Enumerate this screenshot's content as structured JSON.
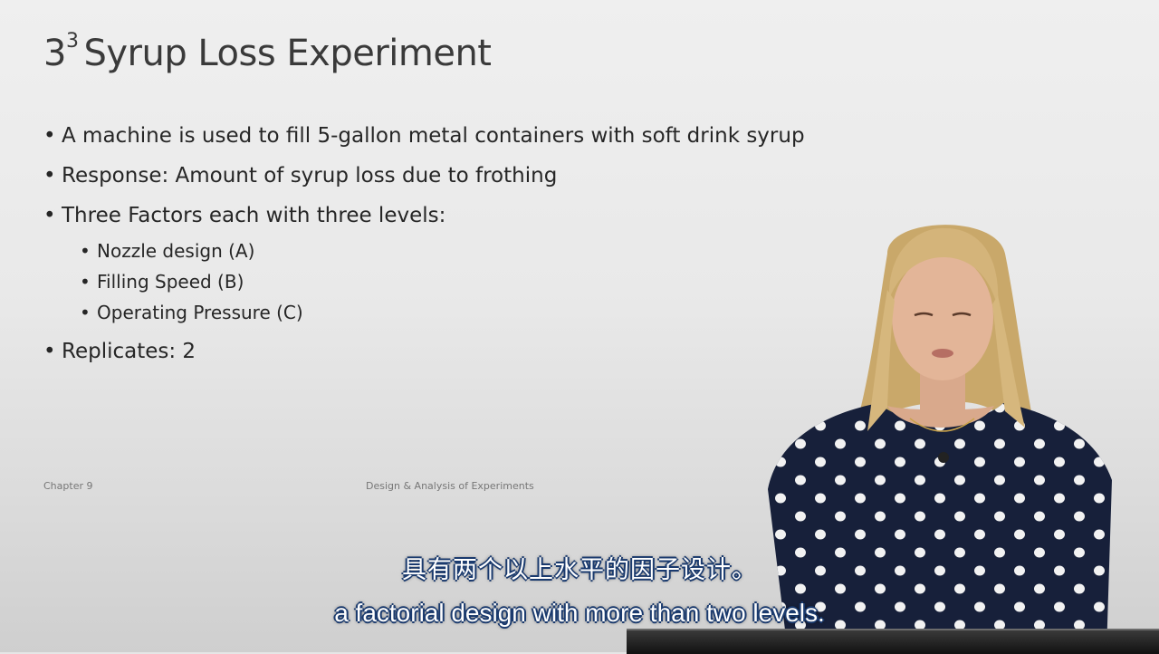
{
  "slide": {
    "title_base": "3",
    "title_exponent": "3",
    "title_rest": "Syrup Loss Experiment",
    "bullets": [
      "A machine is used to fill 5-gallon metal containers with soft drink syrup",
      "Response: Amount of syrup loss due to frothing",
      "Three Factors each with three levels:"
    ],
    "sub_bullets": [
      "Nozzle design (A)",
      "Filling Speed (B)",
      "Operating Pressure (C)"
    ],
    "last_bullet": "Replicates: 2",
    "footer_left": "Chapter 9",
    "footer_center": "Design & Analysis of Experiments"
  },
  "subtitles": {
    "chinese": "具有两个以上水平的因子设计。",
    "english": "a factorial design with more than two levels."
  },
  "colors": {
    "slide_bg": "#ececec",
    "title_text": "#3a3a3a",
    "body_text": "#262626",
    "subtitle_outline": "#1a3a6e",
    "dress": "#17203a",
    "dots": "#f2f2f2"
  }
}
